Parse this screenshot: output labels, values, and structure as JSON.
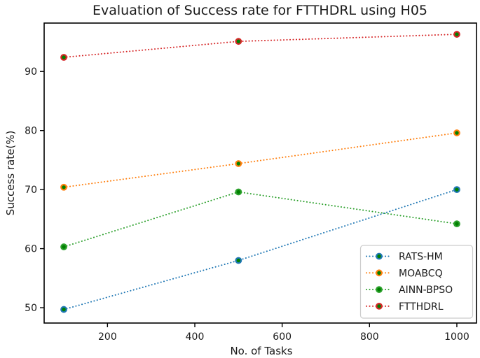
{
  "figure": {
    "background": "#ffffff",
    "spine_color": "#000000",
    "text_color": "#1a1a1a"
  },
  "chart_data": {
    "type": "line",
    "title": "Evaluation of Success rate for FTTHDRL using H05",
    "xlabel": "No. of Tasks",
    "ylabel": "Success rate(%)",
    "x": [
      100,
      500,
      1000
    ],
    "series": [
      {
        "name": "RATS-HM",
        "color": "#1f77b4",
        "values": [
          49.7,
          58.0,
          70.0
        ]
      },
      {
        "name": "MOABCQ",
        "color": "#ff7f0e",
        "values": [
          70.4,
          74.4,
          79.6
        ]
      },
      {
        "name": "AINN-BPSO",
        "color": "#2ca02c",
        "values": [
          60.3,
          69.6,
          64.2
        ]
      },
      {
        "name": "FTTHDRL",
        "color": "#d62728",
        "values": [
          92.4,
          95.1,
          96.3
        ]
      }
    ],
    "marker": {
      "shape": "circle",
      "face_color": "#008000"
    },
    "line_style": "dotted",
    "xticks": [
      200,
      400,
      600,
      800,
      1000
    ],
    "yticks": [
      50,
      60,
      70,
      80,
      90
    ],
    "xlim": [
      55,
      1045
    ],
    "ylim": [
      47.4,
      98.2
    ],
    "grid": false,
    "legend": {
      "position": "lower-right",
      "entries": [
        "RATS-HM",
        "MOABCQ",
        "AINN-BPSO",
        "FTTHDRL"
      ]
    }
  }
}
